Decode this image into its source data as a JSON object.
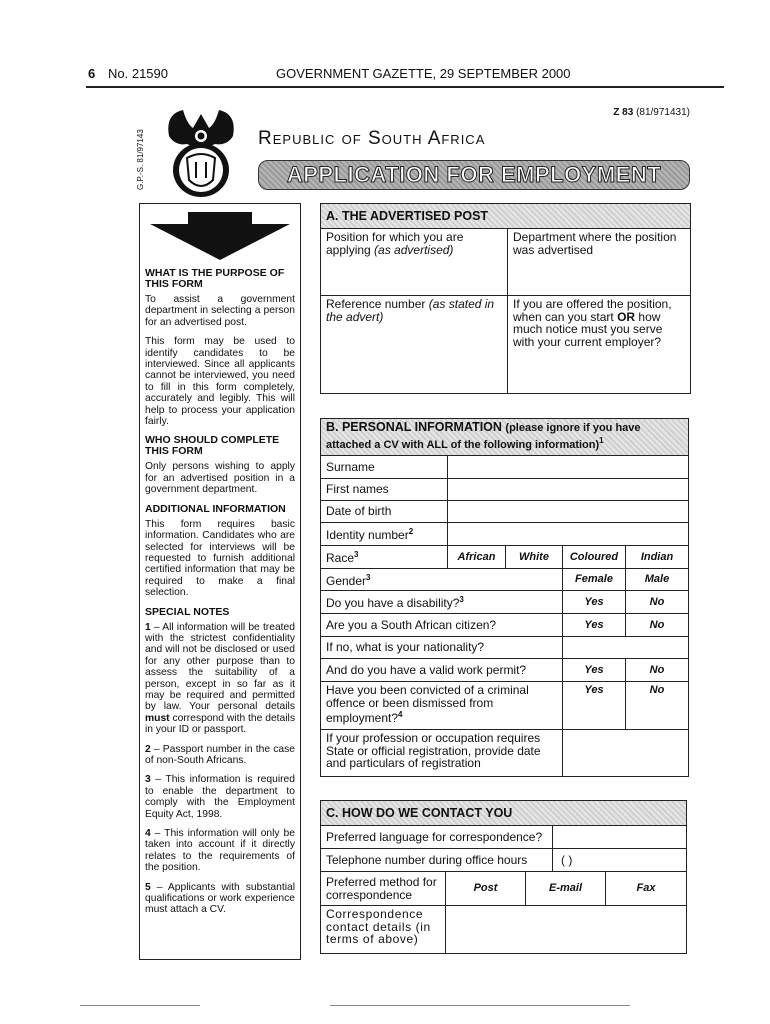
{
  "header": {
    "page": "6",
    "issue": "No. 21590",
    "title": "GOVERNMENT GAZETTE, 29 SEPTEMBER 2000"
  },
  "form_ref": {
    "code": "Z 83",
    "number": "(81/971431)"
  },
  "gps_code": "G.P.-S. 81/97143",
  "country": "Republic of South Africa",
  "form_title": "APPLICATION FOR EMPLOYMENT",
  "sidebar": {
    "h1": "WHAT IS THE PURPOSE OF THIS FORM",
    "p1": "To assist a government department in selecting a person for an advertised post.",
    "p2": "This form may be used to identify candidates to be interviewed. Since all applicants cannot be interviewed, you need to fill in this form completely, accurately and legibly. This will help to process your application fairly.",
    "h2": "WHO SHOULD COMPLETE THIS FORM",
    "p3": "Only persons wishing to apply for an advertised position in a government department.",
    "h3": "ADDITIONAL INFORMATION",
    "p4": "This form requires basic information. Candidates who are selected for interviews will be requested to furnish additional certified information that may be required to make a final selection.",
    "h4": "SPECIAL NOTES",
    "notes": [
      {
        "n": "1",
        "pre": " – All information will be treated with the strictest confidentiality and will not be disclosed or used for any other purpose than to assess the suitability of a person, except in so far as it may be required and permitted by law. Your personal details ",
        "bold": "must",
        "post": " correspond with the details in your ID or passport."
      },
      {
        "n": "2",
        "text": " – Passport number in the case of non-South Africans."
      },
      {
        "n": "3",
        "text": " – This information is required to enable the department to comply with the Employment Equity Act, 1998."
      },
      {
        "n": "4",
        "text": " – This information will only be taken into account if it directly relates to the requirements of the position."
      },
      {
        "n": "5",
        "text": " – Applicants with substantial qualifications or work experience must attach a CV."
      }
    ]
  },
  "section_a": {
    "title": "A. THE ADVERTISED POST",
    "position": "Position for which you are applying ",
    "position_it": "(as advertised)",
    "department": "Department where the position was advertised",
    "reference": "Reference number ",
    "reference_it": "(as stated in the advert)",
    "notice_pre": "If you are offered the position, when can you start ",
    "notice_or": "OR",
    "notice_post": " how much notice must you serve with your current employer?"
  },
  "section_b": {
    "title": "B. PERSONAL INFORMATION",
    "title_note": "(please ignore if you have attached a CV with ALL of the following information)",
    "title_sup": "1",
    "surname": "Surname",
    "first_names": "First names",
    "dob": "Date of birth",
    "id": "Identity number",
    "id_sup": "2",
    "race": "Race",
    "race_sup": "3",
    "race_opts": [
      "African",
      "White",
      "Coloured",
      "Indian"
    ],
    "gender": "Gender",
    "gender_sup": "3",
    "gender_opts": [
      "Female",
      "Male"
    ],
    "disability": "Do you have a disability?",
    "disability_sup": "3",
    "citizen": "Are you a South African citizen?",
    "nationality": "If no, what is your nationality?",
    "permit": "And do you have a valid work permit?",
    "convicted": "Have you been convicted of a criminal offence or been dismissed from employment?",
    "convicted_sup": "4",
    "yes": "Yes",
    "no": "No",
    "registration": "If your profession or occupation requires State or official registration, provide date and particulars of registration"
  },
  "section_c": {
    "title": "C. HOW DO WE CONTACT YOU",
    "language": "Preferred language for correspondence?",
    "telephone": "Telephone number during office hours",
    "tel_value": "(        )",
    "method": "Preferred method for correspondence",
    "methods": [
      "Post",
      "E-mail",
      "Fax"
    ],
    "details": "Correspondence contact details (in terms of above)"
  }
}
